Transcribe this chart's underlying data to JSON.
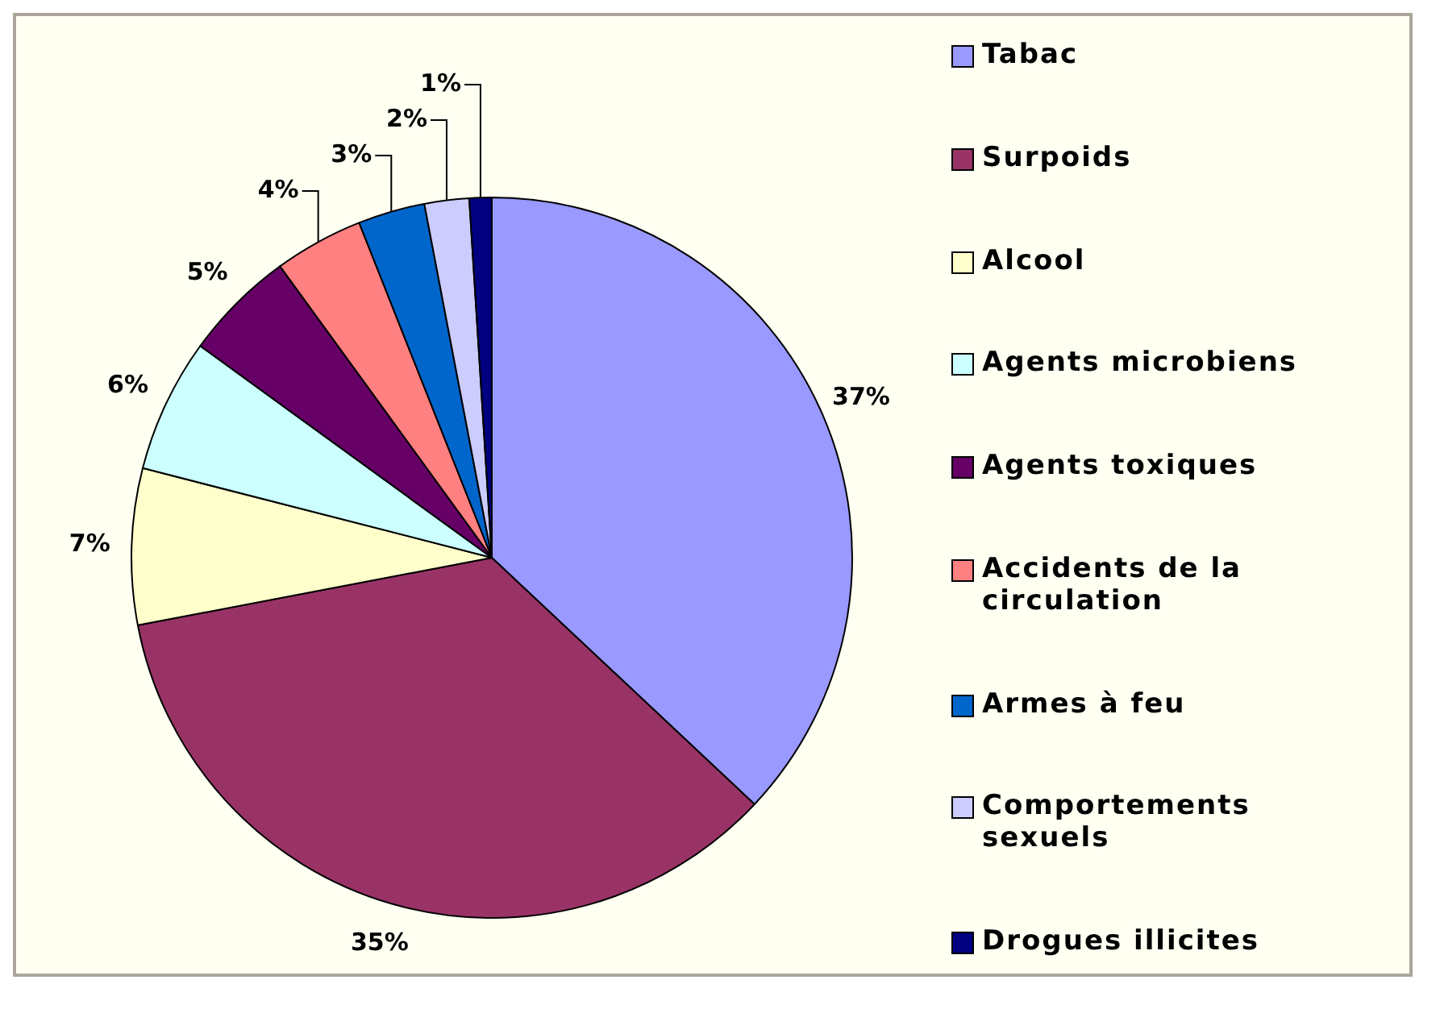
{
  "chart_data": {
    "type": "pie",
    "categories": [
      "Tabac",
      "Surpoids",
      "Alcool",
      "Agents microbiens",
      "Agents toxiques",
      "Accidents de la circulation",
      "Armes à feu",
      "Comportements sexuels",
      "Drogues illicites"
    ],
    "values": [
      37,
      35,
      7,
      6,
      5,
      4,
      3,
      2,
      1
    ],
    "colors": [
      "#9999ff",
      "#993366",
      "#ffffcc",
      "#ccffff",
      "#660066",
      "#ff8080",
      "#0066cc",
      "#ccccff",
      "#000080"
    ],
    "value_labels": [
      "37%",
      "35%",
      "7%",
      "6%",
      "5%",
      "4%",
      "3%",
      "2%",
      "1%"
    ],
    "legend": "right"
  }
}
